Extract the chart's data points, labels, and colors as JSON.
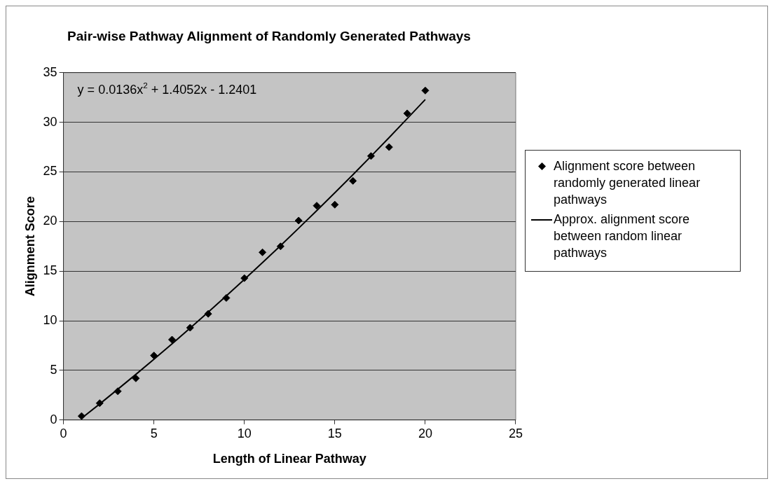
{
  "chart_data": {
    "type": "scatter",
    "title": "Pair-wise Pathway Alignment of Randomly Generated Pathways",
    "xlabel": "Length of Linear Pathway",
    "ylabel": "Alignment Score",
    "xlim": [
      0,
      25
    ],
    "xticks": [
      0,
      5,
      10,
      15,
      20,
      25
    ],
    "ylim": [
      0,
      35
    ],
    "yticks": [
      0,
      5,
      10,
      15,
      20,
      25,
      30,
      35
    ],
    "grid": "y",
    "legend": "right",
    "annotations": [
      "y = 0.0136x$^{2}$ + 1.4052x - 1.2401"
    ],
    "series": [
      {
        "name": "Alignment score between randomly generated linear pathways",
        "marker": "diamond",
        "color": "#000000",
        "x": [
          1,
          2,
          3,
          4,
          5,
          6,
          7,
          8,
          9,
          10,
          11,
          12,
          13,
          14,
          15,
          16,
          17,
          18,
          19,
          20
        ],
        "values": [
          0.4,
          1.7,
          2.9,
          4.2,
          6.5,
          8.1,
          9.3,
          10.7,
          12.3,
          14.3,
          16.9,
          17.5,
          20.1,
          21.6,
          21.7,
          24.1,
          26.6,
          27.5,
          30.9,
          33.2
        ]
      },
      {
        "name": "Approx. alignment score between random linear pathways",
        "type": "line",
        "marker": "none",
        "line_style": "solid",
        "color": "#000000",
        "x": [
          1,
          2,
          3,
          4,
          5,
          6,
          7,
          8,
          9,
          10,
          11,
          12,
          13,
          14,
          15,
          16,
          17,
          18,
          19,
          20
        ],
        "values": [
          0.18,
          1.62,
          3.1,
          4.6,
          6.13,
          7.68,
          9.26,
          10.87,
          12.51,
          14.17,
          15.86,
          17.58,
          19.33,
          21.1,
          22.9,
          24.72,
          26.58,
          28.46,
          30.37,
          32.3
        ]
      }
    ]
  }
}
